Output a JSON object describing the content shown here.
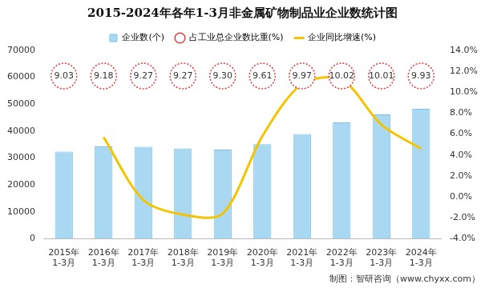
{
  "chart_data": {
    "type": "bar",
    "title": "2015-2024年各年1-3月非金属矿物制品业企业数统计图",
    "categories": [
      "2015年\n1-3月",
      "2016年\n1-3月",
      "2017年\n1-3月",
      "2018年\n1-3月",
      "2019年\n1-3月",
      "2020年\n1-3月",
      "2021年\n1-3月",
      "2022年\n1-3月",
      "2023年\n1-3月",
      "2024年\n1-3月"
    ],
    "series": [
      {
        "name": "企业数(个)",
        "type": "bar",
        "color": "#a9d9f2",
        "values": [
          32400,
          34300,
          34200,
          33600,
          33100,
          35100,
          38900,
          43200,
          46200,
          48300
        ]
      },
      {
        "name": "占工业总企业数比重(%)",
        "type": "label",
        "marker": "circle",
        "line_style": "dotted",
        "color": "#e03c3c",
        "data_labels": true,
        "values": [
          9.03,
          9.18,
          9.27,
          9.27,
          9.3,
          9.61,
          9.97,
          10.02,
          10.01,
          9.93
        ],
        "value_labels": [
          "9.03",
          "9.18",
          "9.27",
          "9.27",
          "9.30",
          "9.61",
          "9.97",
          "10.02",
          "10.01",
          "9.93"
        ]
      },
      {
        "name": "企业同比增速(%)",
        "type": "line",
        "axis": "y2",
        "color": "#f5c400",
        "values": [
          null,
          5.7,
          -0.3,
          -1.7,
          -1.6,
          5.8,
          10.8,
          11.2,
          6.9,
          4.6
        ]
      }
    ],
    "ylim": [
      0,
      70000
    ],
    "yticks": [
      0,
      10000,
      20000,
      30000,
      40000,
      50000,
      60000,
      70000
    ],
    "y2lim": [
      -4,
      14
    ],
    "y2ticks": [
      {
        "value": -4,
        "label": "-4.0%"
      },
      {
        "value": -2,
        "label": "-2.0%"
      },
      {
        "value": 0,
        "label": "0.0%"
      },
      {
        "value": 2,
        "label": "2.0%"
      },
      {
        "value": 4,
        "label": "4.0%"
      },
      {
        "value": 6,
        "label": "6.0%"
      },
      {
        "value": 8,
        "label": "8.0%"
      },
      {
        "value": 10,
        "label": "10.0%"
      },
      {
        "value": 12,
        "label": "12.0%"
      },
      {
        "value": 14,
        "label": "14.0%"
      }
    ],
    "grid": false,
    "legend": "top",
    "annotations": [
      "制图：智研咨询（www.chyxx.com）"
    ]
  }
}
